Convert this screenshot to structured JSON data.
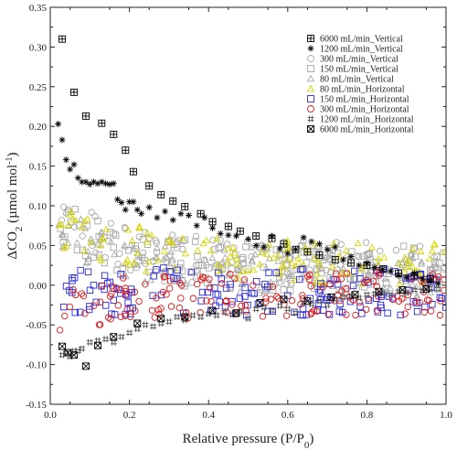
{
  "chart_data": {
    "type": "scatter",
    "title": "",
    "xlabel": "Relative pressure (P/P0)",
    "ylabel": "ΔCO2 (µmol mol-1)",
    "xlim": [
      0.0,
      1.0
    ],
    "ylim": [
      -0.15,
      0.35
    ],
    "x_ticks": [
      0.0,
      0.2,
      0.4,
      0.6,
      0.8,
      1.0
    ],
    "y_ticks": [
      -0.15,
      -0.1,
      -0.05,
      0.0,
      0.05,
      0.1,
      0.15,
      0.2,
      0.25,
      0.3,
      0.35
    ],
    "grid": false,
    "legend_position": "top-right",
    "series": [
      {
        "name": "6000 mL/min_Vertical",
        "marker": "boxplus",
        "color": "#000000",
        "points": [
          [
            0.03,
            0.31
          ],
          [
            0.06,
            0.243
          ],
          [
            0.09,
            0.213
          ],
          [
            0.13,
            0.204
          ],
          [
            0.16,
            0.19
          ],
          [
            0.19,
            0.17
          ],
          [
            0.21,
            0.143
          ],
          [
            0.25,
            0.125
          ],
          [
            0.28,
            0.114
          ],
          [
            0.31,
            0.106
          ],
          [
            0.34,
            0.099
          ],
          [
            0.38,
            0.09
          ],
          [
            0.41,
            0.08
          ],
          [
            0.45,
            0.074
          ],
          [
            0.48,
            0.068
          ],
          [
            0.52,
            0.062
          ],
          [
            0.56,
            0.059
          ],
          [
            0.59,
            0.052
          ],
          [
            0.62,
            0.045
          ],
          [
            0.65,
            0.042
          ],
          [
            0.68,
            0.038
          ],
          [
            0.72,
            0.032
          ],
          [
            0.76,
            0.028
          ],
          [
            0.8,
            0.025
          ],
          [
            0.84,
            0.02
          ],
          [
            0.88,
            0.015
          ],
          [
            0.92,
            0.012
          ],
          [
            0.96,
            0.008
          ]
        ]
      },
      {
        "name": "1200 mL/min_Vertical",
        "marker": "asterisk",
        "color": "#000000",
        "points": [
          [
            0.02,
            0.203
          ],
          [
            0.03,
            0.183
          ],
          [
            0.04,
            0.158
          ],
          [
            0.05,
            0.146
          ],
          [
            0.06,
            0.152
          ],
          [
            0.07,
            0.135
          ],
          [
            0.08,
            0.13
          ],
          [
            0.09,
            0.13
          ],
          [
            0.1,
            0.127
          ],
          [
            0.11,
            0.13
          ],
          [
            0.12,
            0.128
          ],
          [
            0.13,
            0.13
          ],
          [
            0.14,
            0.128
          ],
          [
            0.15,
            0.127
          ],
          [
            0.16,
            0.128
          ],
          [
            0.17,
            0.108
          ],
          [
            0.18,
            0.104
          ],
          [
            0.19,
            0.095
          ],
          [
            0.2,
            0.105
          ],
          [
            0.21,
            0.105
          ],
          [
            0.22,
            0.095
          ],
          [
            0.23,
            0.09
          ],
          [
            0.25,
            0.098
          ],
          [
            0.27,
            0.085
          ],
          [
            0.29,
            0.093
          ],
          [
            0.31,
            0.082
          ],
          [
            0.33,
            0.09
          ],
          [
            0.35,
            0.088
          ],
          [
            0.37,
            0.075
          ],
          [
            0.39,
            0.085
          ],
          [
            0.41,
            0.072
          ],
          [
            0.43,
            0.065
          ],
          [
            0.45,
            0.063
          ],
          [
            0.47,
            0.062
          ],
          [
            0.5,
            0.058
          ],
          [
            0.52,
            0.05
          ],
          [
            0.54,
            0.048
          ],
          [
            0.56,
            0.062
          ],
          [
            0.58,
            0.046
          ],
          [
            0.6,
            0.04
          ],
          [
            0.62,
            0.045
          ],
          [
            0.64,
            0.06
          ],
          [
            0.66,
            0.055
          ],
          [
            0.68,
            0.052
          ],
          [
            0.7,
            0.045
          ],
          [
            0.72,
            0.048
          ],
          [
            0.74,
            0.032
          ],
          [
            0.76,
            0.036
          ],
          [
            0.78,
            0.025
          ],
          [
            0.8,
            0.028
          ],
          [
            0.82,
            0.022
          ],
          [
            0.84,
            0.02
          ],
          [
            0.86,
            0.018
          ],
          [
            0.88,
            0.012
          ],
          [
            0.9,
            0.01
          ],
          [
            0.92,
            0.015
          ],
          [
            0.94,
            0.008
          ],
          [
            0.96,
            0.005
          ],
          [
            0.98,
            0.002
          ]
        ]
      },
      {
        "name": "300 mL/min_Vertical",
        "marker": "circle",
        "color": "#a8a8a8",
        "cloud": {
          "a": 0.055,
          "b": 0.065,
          "tau": 0.13,
          "c": 0.022,
          "spread": 0.03,
          "count": 140
        }
      },
      {
        "name": "150 mL/min_Vertical",
        "marker": "square",
        "color": "#a8a8a8",
        "cloud": {
          "a": 0.045,
          "b": 0.06,
          "tau": 0.13,
          "c": 0.018,
          "spread": 0.03,
          "count": 140
        }
      },
      {
        "name": "80 mL/min_Vertical",
        "marker": "triangle",
        "color": "#a8a8a8",
        "cloud": {
          "a": 0.05,
          "b": 0.055,
          "tau": 0.15,
          "c": 0.012,
          "spread": 0.03,
          "count": 140
        }
      },
      {
        "name": "80 mL/min_Horizontal",
        "marker": "triangle",
        "color": "#d8d800",
        "cloud": {
          "a": 0.05,
          "b": 0.0,
          "tau": 0.25,
          "c": 0.025,
          "spread": 0.028,
          "count": 130
        }
      },
      {
        "name": "150 mL/min_Horizontal",
        "marker": "square",
        "color": "#2a2ae0",
        "cloud": {
          "a": 0.0,
          "b": 0.0,
          "tau": 0.2,
          "c": -0.008,
          "spread": 0.03,
          "count": 150
        }
      },
      {
        "name": "300 mL/min_Horizontal",
        "marker": "circle",
        "color": "#e01818",
        "cloud": {
          "a": -0.02,
          "b": 0.0,
          "tau": 0.2,
          "c": -0.01,
          "spread": 0.028,
          "count": 150
        }
      },
      {
        "name": "1200 mL/min_Horizontal",
        "marker": "hash",
        "color": "#555555",
        "points": [
          [
            0.03,
            -0.088
          ],
          [
            0.04,
            -0.085
          ],
          [
            0.05,
            -0.09
          ],
          [
            0.06,
            -0.083
          ],
          [
            0.07,
            -0.083
          ],
          [
            0.08,
            -0.08
          ],
          [
            0.1,
            -0.072
          ],
          [
            0.12,
            -0.07
          ],
          [
            0.14,
            -0.068
          ],
          [
            0.16,
            -0.072
          ],
          [
            0.18,
            -0.065
          ],
          [
            0.2,
            -0.06
          ],
          [
            0.22,
            -0.055
          ],
          [
            0.24,
            -0.05
          ],
          [
            0.26,
            -0.052
          ],
          [
            0.28,
            -0.048
          ],
          [
            0.3,
            -0.046
          ],
          [
            0.32,
            -0.04
          ],
          [
            0.34,
            -0.044
          ],
          [
            0.36,
            -0.038
          ],
          [
            0.38,
            -0.04
          ],
          [
            0.4,
            -0.036
          ],
          [
            0.42,
            -0.038
          ],
          [
            0.44,
            -0.034
          ],
          [
            0.46,
            -0.037
          ],
          [
            0.48,
            -0.033
          ],
          [
            0.5,
            -0.042
          ],
          [
            0.52,
            -0.03
          ],
          [
            0.54,
            -0.028
          ],
          [
            0.56,
            -0.032
          ],
          [
            0.58,
            -0.026
          ],
          [
            0.6,
            -0.03
          ],
          [
            0.62,
            -0.035
          ],
          [
            0.64,
            -0.022
          ],
          [
            0.66,
            -0.024
          ],
          [
            0.68,
            -0.02
          ],
          [
            0.7,
            -0.025
          ],
          [
            0.72,
            -0.018
          ],
          [
            0.74,
            -0.015
          ],
          [
            0.76,
            -0.014
          ],
          [
            0.78,
            -0.016
          ],
          [
            0.8,
            -0.012
          ],
          [
            0.82,
            -0.011
          ],
          [
            0.84,
            -0.01
          ],
          [
            0.86,
            -0.012
          ],
          [
            0.88,
            -0.008
          ],
          [
            0.9,
            -0.009
          ],
          [
            0.92,
            -0.006
          ],
          [
            0.94,
            -0.007
          ],
          [
            0.96,
            -0.004
          ],
          [
            0.98,
            -0.005
          ]
        ]
      },
      {
        "name": "6000 mL/min_Horizontal",
        "marker": "boxtimes",
        "color": "#000000",
        "points": [
          [
            0.03,
            -0.077
          ],
          [
            0.045,
            -0.085
          ],
          [
            0.06,
            -0.088
          ],
          [
            0.09,
            -0.102
          ],
          [
            0.12,
            -0.076
          ],
          [
            0.16,
            -0.065
          ],
          [
            0.22,
            -0.048
          ],
          [
            0.28,
            -0.042
          ],
          [
            0.34,
            -0.04
          ],
          [
            0.41,
            -0.032
          ],
          [
            0.47,
            -0.035
          ],
          [
            0.53,
            -0.022
          ],
          [
            0.59,
            -0.018
          ],
          [
            0.65,
            -0.02
          ],
          [
            0.71,
            -0.015
          ],
          [
            0.77,
            -0.012
          ],
          [
            0.83,
            -0.008
          ],
          [
            0.89,
            -0.006
          ],
          [
            0.95,
            -0.005
          ]
        ]
      }
    ]
  }
}
